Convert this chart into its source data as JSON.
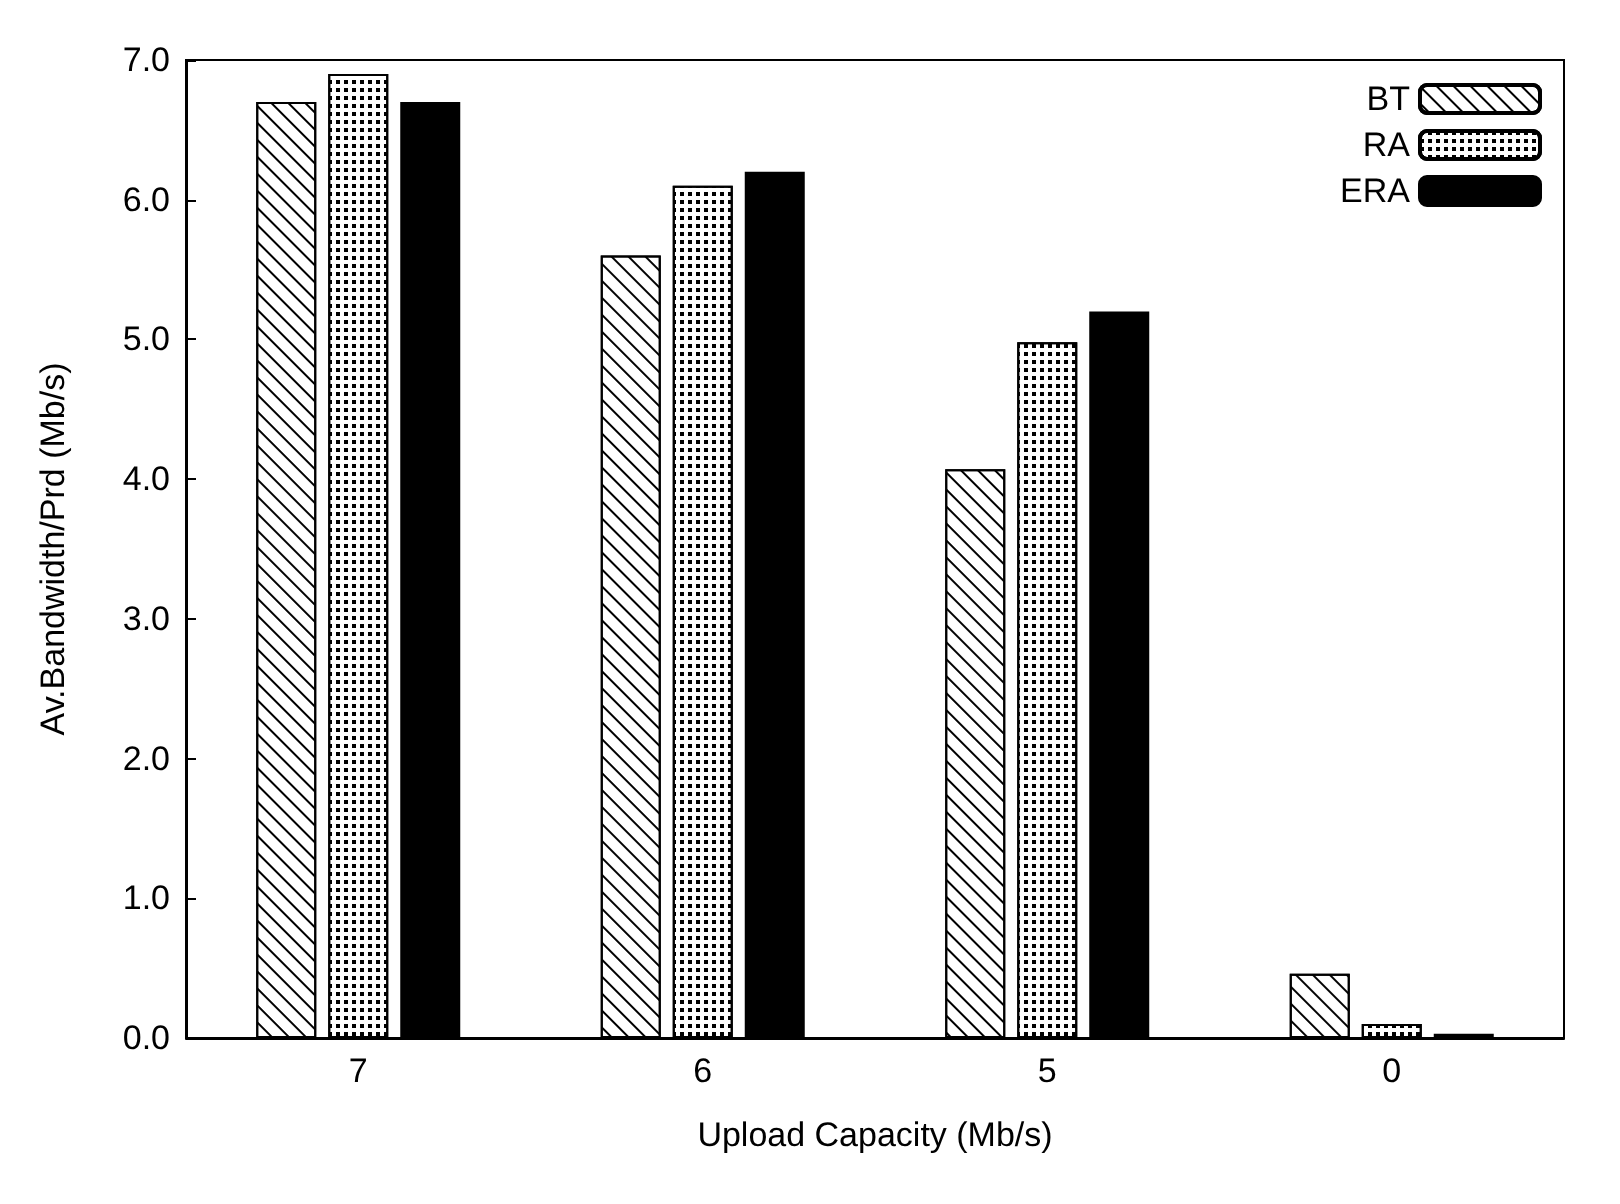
{
  "chart_data": {
    "type": "bar",
    "xlabel": "Upload Capacity (Mb/s)",
    "ylabel": "Av.Bandwidth/Prd (Mb/s)",
    "categories": [
      "7",
      "6",
      "5",
      "0"
    ],
    "series": [
      {
        "name": "BT",
        "color": "#ffffff",
        "values": [
          6.7,
          5.6,
          4.07,
          0.46
        ]
      },
      {
        "name": "RA",
        "color": "#ffffff",
        "values": [
          6.9,
          6.1,
          4.98,
          0.1
        ]
      },
      {
        "name": "ERA",
        "color": "#000000",
        "values": [
          6.7,
          6.2,
          5.2,
          0.03
        ]
      }
    ],
    "ylim": [
      0,
      7
    ],
    "yticks": [
      {
        "value": 0,
        "label": "0.0"
      },
      {
        "value": 1,
        "label": "1.0"
      },
      {
        "value": 2,
        "label": "2.0"
      },
      {
        "value": 3,
        "label": "3.0"
      },
      {
        "value": 4,
        "label": "4.0"
      },
      {
        "value": 5,
        "label": "5.0"
      },
      {
        "value": 6,
        "label": "6.0"
      },
      {
        "value": 7,
        "label": "7.0"
      }
    ],
    "grid": false,
    "legend": "top right"
  }
}
